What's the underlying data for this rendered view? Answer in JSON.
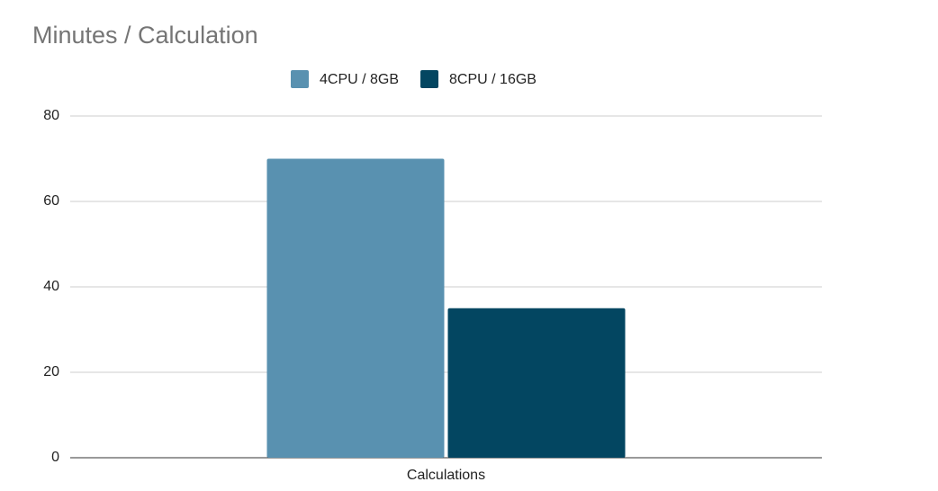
{
  "chart_data": {
    "type": "bar",
    "title": "Minutes / Calculation",
    "categories": [
      "Calculations"
    ],
    "series": [
      {
        "name": "4CPU / 8GB",
        "color": "#5991b0",
        "values": [
          70
        ]
      },
      {
        "name": "8CPU / 16GB",
        "color": "#034661",
        "values": [
          35
        ]
      }
    ],
    "ylim": [
      0,
      80
    ],
    "yticks": [
      0,
      20,
      40,
      60,
      80
    ],
    "grid": true,
    "legend": "top"
  }
}
